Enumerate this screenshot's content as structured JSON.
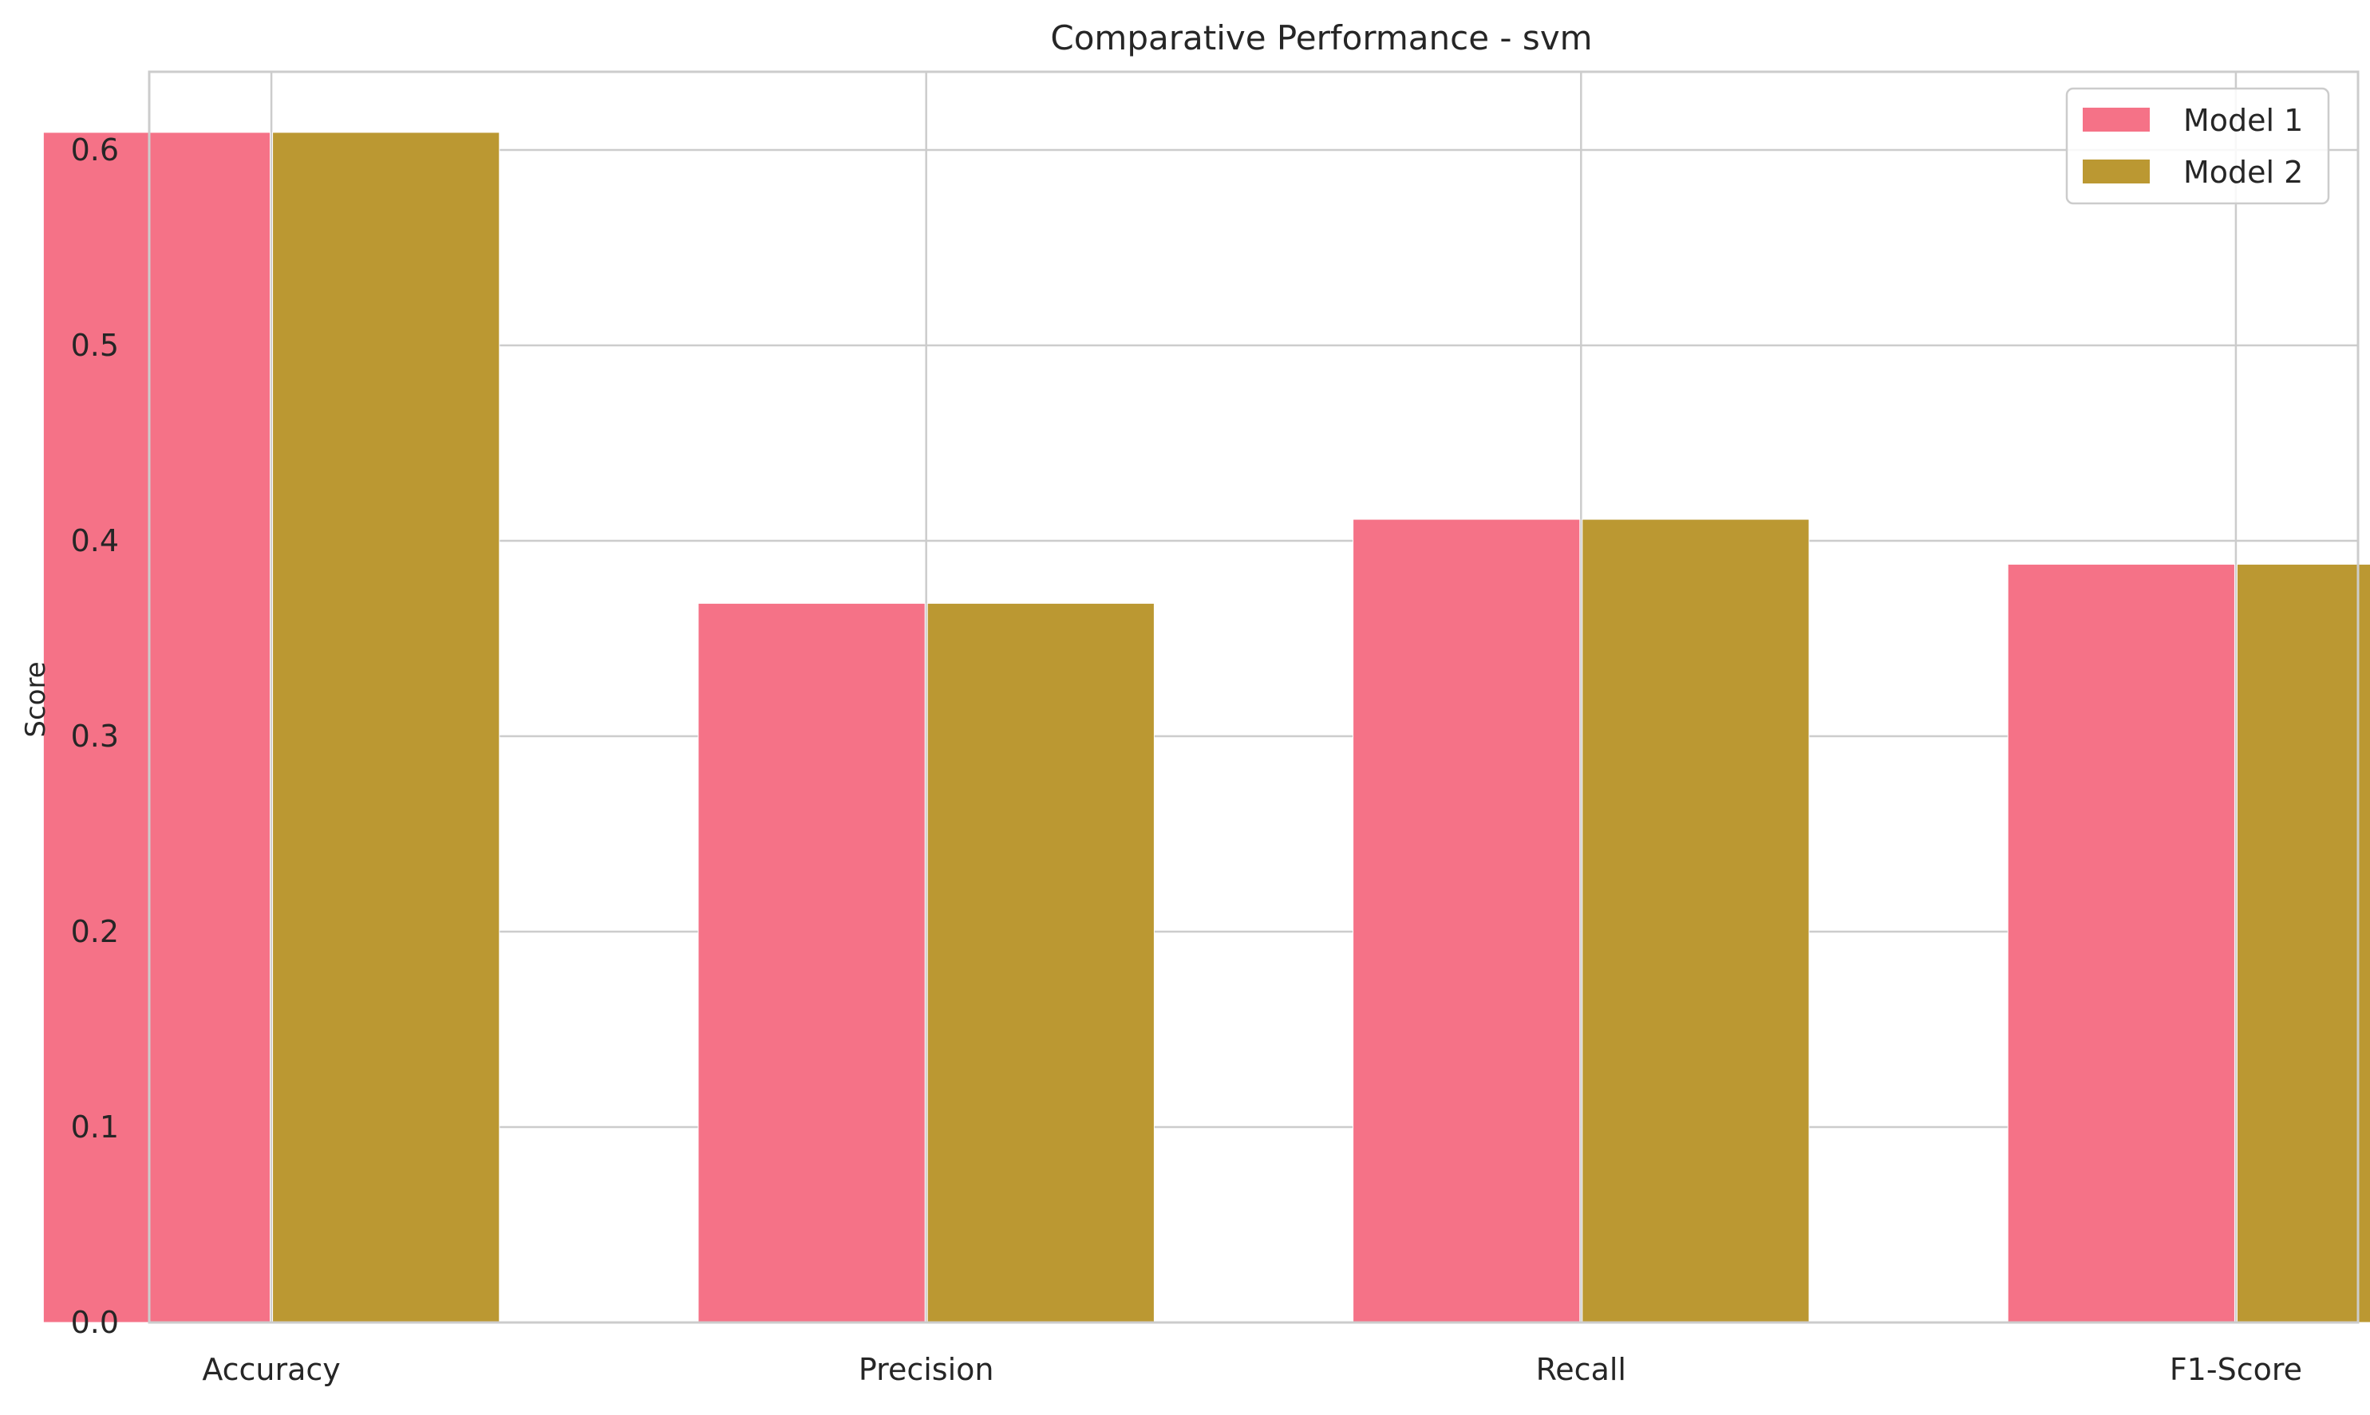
{
  "chart_data": {
    "type": "bar",
    "title": "Comparative Performance - svm",
    "xlabel": "",
    "ylabel": "Score",
    "categories": [
      "Accuracy",
      "Precision",
      "Recall",
      "F1-Score"
    ],
    "series": [
      {
        "name": "Model 1",
        "values": [
          0.609,
          0.368,
          0.411,
          0.388
        ],
        "color": "#f57287"
      },
      {
        "name": "Model 2",
        "values": [
          0.609,
          0.368,
          0.411,
          0.388
        ],
        "color": "#bb9832"
      }
    ],
    "ylim": [
      0,
      0.64
    ],
    "yticks": [
      "0.0",
      "0.1",
      "0.2",
      "0.3",
      "0.4",
      "0.5",
      "0.6"
    ],
    "grid": true,
    "legend_position": "top-right"
  },
  "colors": {
    "grid": "#cccccc",
    "spine": "#cccccc",
    "text": "#262626",
    "background": "#ffffff"
  }
}
